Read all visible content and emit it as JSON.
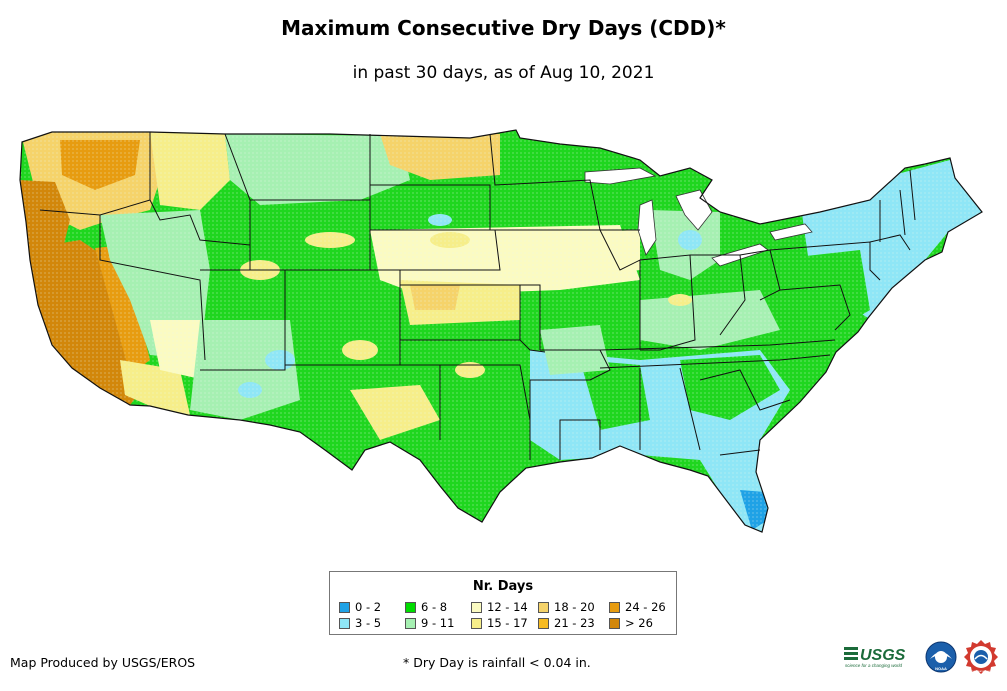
{
  "title": "Maximum Consecutive Dry Days (CDD)*",
  "subtitle": "in past 30 days, as of Aug 10, 2021",
  "legend": {
    "title": "Nr. Days",
    "items": [
      {
        "label": "0 - 2",
        "color": "#1fa2e6"
      },
      {
        "label": "3 - 5",
        "color": "#8fe6f6"
      },
      {
        "label": "6 - 8",
        "color": "#00dc00"
      },
      {
        "label": "9 - 11",
        "color": "#a6f0b2"
      },
      {
        "label": "12 - 14",
        "color": "#fbfbc2"
      },
      {
        "label": "15 - 17",
        "color": "#f6ee8a"
      },
      {
        "label": "18 - 20",
        "color": "#f5d36a"
      },
      {
        "label": "21 - 23",
        "color": "#f6bb22"
      },
      {
        "label": "24 - 26",
        "color": "#e79c10"
      },
      {
        "label": "> 26",
        "color": "#d2870a"
      }
    ]
  },
  "credit": "Map Produced by USGS/EROS",
  "footnote": "* Dry Day is rainfall < 0.04 in.",
  "logos": {
    "usgs": "USGS",
    "usgs_tagline": "science for a changing world",
    "noaa": "NOAA",
    "nws": "NATIONAL WEATHER SERVICE"
  }
}
